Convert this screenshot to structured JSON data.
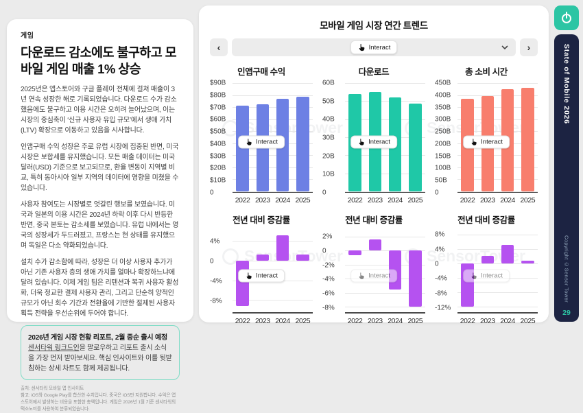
{
  "left_panel": {
    "eyebrow": "게임",
    "title": "다운로드 감소에도 불구하고 모바일 게임 매출 1% 상승",
    "paragraphs": [
      "2025년은 앱스토어와 구글 플레이 전체에 걸쳐 매출이 3년 연속 성장한 해로 기록되었습니다. 다운로드 수가 감소했음에도 불구하고 이용 시간은 오히려 늘어났으며, 이는 시장의 중심축이 ‘신규 사용자 유입 규모’에서 생애 가치(LTV) 확장으로 이동하고 있음을 시사합니다.",
      "인앱구매 수익 성장은 주로 유럽 시장에 집중된 반면, 미국 시장은 보합세를 유지했습니다. 모든 매출 데이터는 미국 달러(USD) 기준으로 보고되므로, 환율 변동이 지역별 비교, 특히 동아시아 일부 지역의 데이터에 영향을 미쳤을 수 있습니다.",
      "사용자 참여도는 시장별로 엇갈린 행보를 보였습니다. 미국과 일본의 이용 시간은 2024년 하락 이후 다시 반등한 반면, 중국 본토는 감소세를 보였습니다. 유럽 내에서는 영국의 성장세가 두드러졌고, 프랑스는 현 상태를 유지했으며 독일은 다소 약화되었습니다.",
      "설치 수가 감소함에 따라, 성장은 더 이상 사용자 추가가 아닌 기존 사용자 층의 생애 가치를 얼마나 확장하느냐에 달려 있습니다. 이제 게임 팀은 리텐션과 복귀 사용자 활성화, 더욱 정교한 결제 사용자 관리, 그리고 단순히 양적인 규모가 아닌 회수 기간과 전환율에 기반한 절제된 사용자 획득 전략을 우선순위에 두어야 합니다."
    ],
    "callout": {
      "title": "2026년 게임 시장 현황 리포트, 2월 중순 출시 예정",
      "link_text": "센서타워 링크드인",
      "body_after_link": "을 팔로우하고 리포트 출시 소식을 가장 먼저 받아보세요. 핵심 인사이트와 이를 뒷받침하는 상세 차트도 함께 제공됩니다.",
      "border_color": "#7fdcc6"
    },
    "footnote_source": "출처: 센서타워 모바일 앱 인사이트",
    "footnote_note": "참고: iOS와 Google Play를 합산한 수치입니다. 중국은 iOS만 지원합니다. 수익은 앱스토어에서 발생하는 비용을 포함한 총액입니다. 게임은 2026년 1월 기준 센서타워의 택소노미를 사용하여 분류되었습니다."
  },
  "right_panel": {
    "title": "모바일 게임 시장 연간 트렌드",
    "interact_label": "Interact",
    "prev_arrow": "‹",
    "next_arrow": "›",
    "watermark": "SensorTower"
  },
  "sidebar": {
    "brand": "State of Mobile 2026",
    "copyright": "Copyright ©Sensor Tower",
    "page_number": "29",
    "bg": "#1c2342",
    "accent": "#2cc5a4"
  },
  "chart_data": [
    {
      "type": "bar",
      "title": "인앱구매 수익",
      "categories": [
        "2022",
        "2023",
        "2024",
        "2025"
      ],
      "values": [
        71,
        72.5,
        77,
        78.5
      ],
      "unit": "USD billions",
      "color": "#6d80e4",
      "ylim": [
        0,
        90
      ],
      "yticks": [
        {
          "v": 90,
          "label": "$90B"
        },
        {
          "v": 80,
          "label": "$80B"
        },
        {
          "v": 70,
          "label": "$70B"
        },
        {
          "v": 60,
          "label": "$60B"
        },
        {
          "v": 50,
          "label": "$50B"
        },
        {
          "v": 40,
          "label": "$40B"
        },
        {
          "v": 30,
          "label": "$30B"
        },
        {
          "v": 20,
          "label": "$20B"
        },
        {
          "v": 10,
          "label": "$10B"
        },
        {
          "v": 0,
          "label": "0"
        }
      ]
    },
    {
      "type": "bar",
      "title": "다운로드",
      "categories": [
        "2022",
        "2023",
        "2024",
        "2025"
      ],
      "values": [
        54,
        55,
        52,
        48.5
      ],
      "unit": "billions",
      "color": "#1fc8a7",
      "ylim": [
        0,
        60
      ],
      "yticks": [
        {
          "v": 60,
          "label": "60B"
        },
        {
          "v": 50,
          "label": "50B"
        },
        {
          "v": 40,
          "label": "40B"
        },
        {
          "v": 30,
          "label": "30B"
        },
        {
          "v": 20,
          "label": "20B"
        },
        {
          "v": 10,
          "label": "10B"
        },
        {
          "v": 0,
          "label": "0"
        }
      ]
    },
    {
      "type": "bar",
      "title": "총 소비 시간",
      "categories": [
        "2022",
        "2023",
        "2024",
        "2025"
      ],
      "values": [
        385,
        397,
        425,
        430
      ],
      "unit": "billions of hours",
      "color": "#f87e6d",
      "ylim": [
        0,
        450
      ],
      "yticks": [
        {
          "v": 450,
          "label": "450B"
        },
        {
          "v": 400,
          "label": "400B"
        },
        {
          "v": 350,
          "label": "350B"
        },
        {
          "v": 300,
          "label": "300B"
        },
        {
          "v": 250,
          "label": "250B"
        },
        {
          "v": 200,
          "label": "200B"
        },
        {
          "v": 150,
          "label": "150B"
        },
        {
          "v": 100,
          "label": "100B"
        },
        {
          "v": 50,
          "label": "50B"
        },
        {
          "v": 0,
          "label": "0"
        }
      ]
    },
    {
      "type": "bar",
      "title": "전년 대비 증감률",
      "categories": [
        "2022",
        "2023",
        "2024",
        "2025"
      ],
      "values": [
        -9.3,
        1.2,
        5.2,
        1.2
      ],
      "unit": "% YoY (in-app purchase revenue)",
      "color": "#b552f0",
      "ylim": [
        -10.5,
        6
      ],
      "yticks": [
        {
          "v": 4,
          "label": "4%"
        },
        {
          "v": 0,
          "label": "0"
        },
        {
          "v": -4,
          "label": "-4%"
        },
        {
          "v": -8,
          "label": "-8%"
        }
      ]
    },
    {
      "type": "bar",
      "title": "전년 대비 증감률",
      "categories": [
        "2022",
        "2023",
        "2024",
        "2025"
      ],
      "values": [
        -0.6,
        1.6,
        -5.6,
        -8
      ],
      "unit": "% YoY (downloads)",
      "color": "#b552f0",
      "ylim": [
        -8.8,
        2.8
      ],
      "yticks": [
        {
          "v": 2,
          "label": "2%"
        },
        {
          "v": 0,
          "label": "0"
        },
        {
          "v": -2,
          "label": "-2%"
        },
        {
          "v": -4,
          "label": "-4%"
        },
        {
          "v": -6,
          "label": "-6%"
        },
        {
          "v": -8,
          "label": "-8%"
        }
      ]
    },
    {
      "type": "bar",
      "title": "전년 대비 증감률",
      "categories": [
        "2022",
        "2023",
        "2024",
        "2025"
      ],
      "values": [
        -12,
        2.2,
        5.2,
        0.8
      ],
      "unit": "% YoY (time spent)",
      "color": "#b552f0",
      "ylim": [
        -13.5,
        9
      ],
      "yticks": [
        {
          "v": 8,
          "label": "8%"
        },
        {
          "v": 4,
          "label": "4%"
        },
        {
          "v": 0,
          "label": "0"
        },
        {
          "v": -4,
          "label": "-4%"
        },
        {
          "v": -8,
          "label": "-8%"
        },
        {
          "v": -12,
          "label": "-12%"
        }
      ]
    }
  ]
}
